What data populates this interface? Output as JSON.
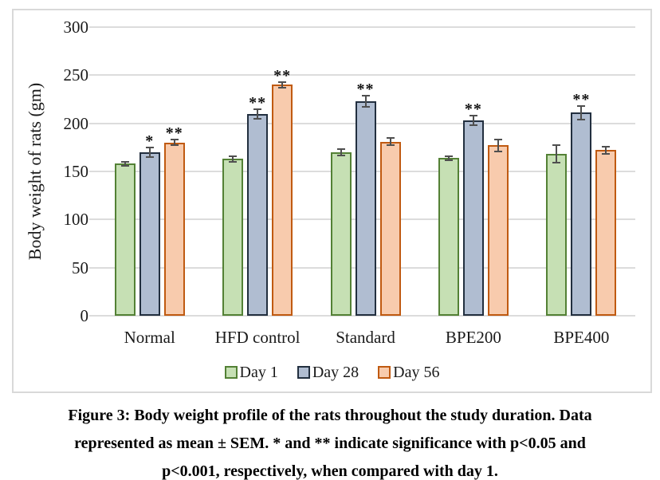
{
  "chart_data": {
    "type": "bar",
    "title": "",
    "categories": [
      "Normal",
      "HFD control",
      "Standard",
      "BPE200",
      "BPE400"
    ],
    "series": [
      {
        "name": "Day 1",
        "values": [
          158,
          163,
          170,
          164,
          168
        ],
        "errors": [
          2,
          3,
          3,
          2,
          9
        ],
        "significance": [
          "",
          "",
          "",
          "",
          ""
        ],
        "fill": "#c6e0b4",
        "border": "#538135"
      },
      {
        "name": "Day 28",
        "values": [
          170,
          210,
          223,
          203,
          211
        ],
        "errors": [
          5,
          5,
          6,
          5,
          7
        ],
        "significance": [
          "*",
          "**",
          "**",
          "**",
          "**"
        ],
        "fill": "#b0bdd1",
        "border": "#222f3f"
      },
      {
        "name": "Day 56",
        "values": [
          180,
          240,
          181,
          177,
          172
        ],
        "errors": [
          3,
          3,
          4,
          6,
          4
        ],
        "significance": [
          "**",
          "**",
          "",
          "",
          ""
        ],
        "fill": "#f8cbad",
        "border": "#c05a11"
      }
    ],
    "xlabel": "",
    "ylabel": "Body weight of rats (gm)",
    "ylim": [
      0,
      300
    ],
    "ytick_step": 50,
    "grid": true,
    "legend_position": "bottom",
    "error_bars": "SEM",
    "gridline_color": "#dcdcdc",
    "error_bar_color": "#4f4f4f"
  },
  "caption": {
    "lines": [
      "Figure 3: Body weight profile of the rats throughout the study duration. Data",
      "represented as mean ± SEM. * and ** indicate significance with p<0.05 and",
      "p<0.001, respectively, when compared with day 1."
    ]
  }
}
